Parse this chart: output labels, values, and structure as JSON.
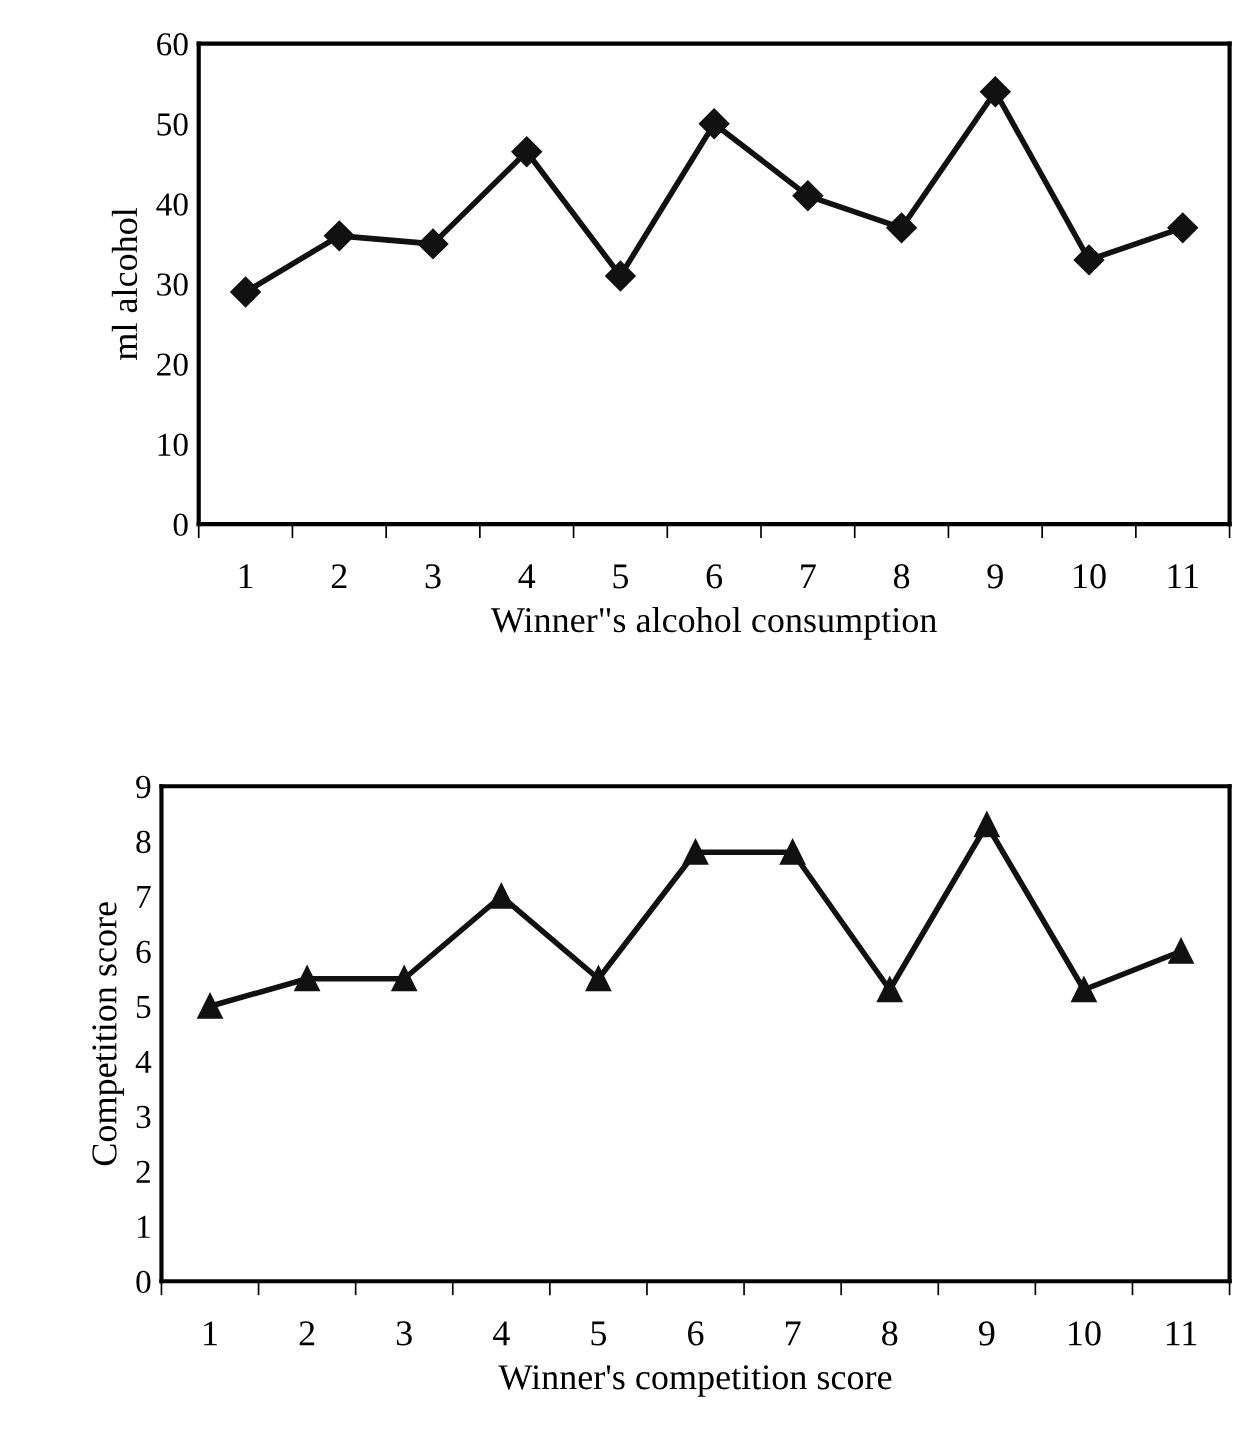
{
  "chart_data": [
    {
      "type": "line",
      "ylabel": "ml alcohol",
      "xlabel": "Winner\"s alcohol consumption",
      "categories": [
        "1",
        "2",
        "3",
        "4",
        "5",
        "6",
        "7",
        "8",
        "9",
        "10",
        "11"
      ],
      "series": [
        {
          "color": "#111111",
          "values": [
            29,
            36,
            35,
            46.5,
            31,
            50,
            41,
            37,
            54,
            33,
            37
          ]
        }
      ],
      "ylim": [
        0,
        60
      ],
      "yticks": [
        0,
        10,
        20,
        30,
        40,
        50,
        60
      ],
      "marker": "diamond",
      "line_style": "solid",
      "grid": false,
      "legend": false
    },
    {
      "type": "line",
      "ylabel": "Competition score",
      "xlabel": "Winner's competition score",
      "categories": [
        "1",
        "2",
        "3",
        "4",
        "5",
        "6",
        "7",
        "8",
        "9",
        "10",
        "11"
      ],
      "series": [
        {
          "color": "#111111",
          "values": [
            5,
            5.5,
            5.5,
            7,
            5.5,
            7.8,
            7.8,
            5.3,
            8.3,
            5.3,
            6
          ]
        }
      ],
      "ylim": [
        0,
        9
      ],
      "yticks": [
        0,
        1,
        2,
        3,
        4,
        5,
        6,
        7,
        8,
        9
      ],
      "marker": "triangle",
      "line_style": "solid",
      "grid": false,
      "legend": false
    }
  ]
}
